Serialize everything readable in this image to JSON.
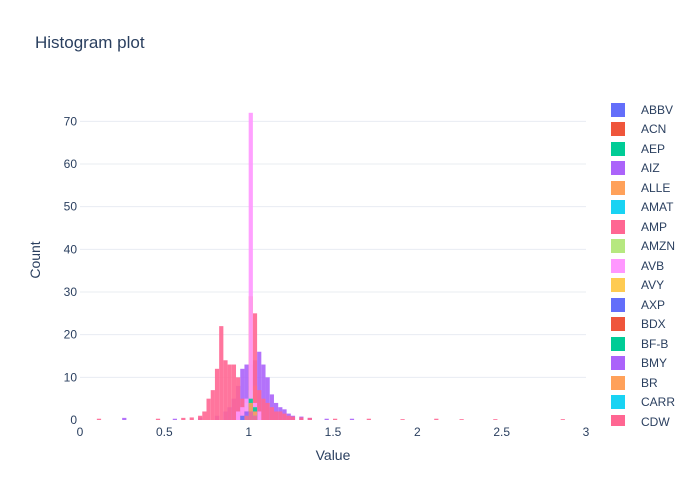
{
  "chart_data": {
    "type": "bar",
    "title": "Histogram plot",
    "xlabel": "Value",
    "ylabel": "Count",
    "xlim": [
      0,
      3
    ],
    "ylim": [
      0,
      75
    ],
    "x_ticks": [
      "0",
      "0.5",
      "1",
      "1.5",
      "2",
      "2.5",
      "3"
    ],
    "y_ticks": [
      "0",
      "10",
      "20",
      "30",
      "40",
      "50",
      "60",
      "70"
    ],
    "grid": true,
    "legend_position": "right",
    "barmode": "overlay",
    "bin_width": 0.025,
    "series": [
      {
        "name": "ABBV",
        "color": "#636efa",
        "bins": [
          [
            0.95,
            1
          ],
          [
            0.975,
            2
          ],
          [
            1.0,
            6
          ],
          [
            1.025,
            4
          ],
          [
            1.05,
            2
          ]
        ]
      },
      {
        "name": "ACN",
        "color": "#EF553B",
        "bins": [
          [
            0.975,
            4
          ],
          [
            1.0,
            8
          ],
          [
            1.025,
            5
          ],
          [
            1.05,
            2
          ]
        ]
      },
      {
        "name": "AEP",
        "color": "#00cc96",
        "bins": [
          [
            0.975,
            3
          ],
          [
            1.0,
            10
          ],
          [
            1.025,
            6
          ],
          [
            1.05,
            2
          ]
        ]
      },
      {
        "name": "AIZ",
        "color": "#ab63fa",
        "bins": [
          [
            0.25,
            0.5
          ],
          [
            0.55,
            0.3
          ],
          [
            0.7,
            0.6
          ],
          [
            0.8,
            1
          ],
          [
            0.85,
            2
          ],
          [
            0.875,
            3
          ],
          [
            0.9,
            5
          ],
          [
            0.925,
            8
          ],
          [
            0.95,
            12
          ],
          [
            0.975,
            13
          ],
          [
            1.0,
            13
          ],
          [
            1.025,
            14
          ],
          [
            1.05,
            16
          ],
          [
            1.075,
            13
          ],
          [
            1.1,
            10
          ],
          [
            1.125,
            6
          ],
          [
            1.15,
            4
          ],
          [
            1.175,
            3
          ],
          [
            1.2,
            2.5
          ],
          [
            1.225,
            1.5
          ],
          [
            1.25,
            1
          ],
          [
            1.3,
            0.8
          ],
          [
            1.35,
            0.5
          ],
          [
            1.45,
            0.3
          ],
          [
            1.6,
            0.3
          ]
        ]
      },
      {
        "name": "ALLE",
        "color": "#FFA15A",
        "bins": [
          [
            1.0,
            29
          ],
          [
            1.025,
            8
          ]
        ]
      },
      {
        "name": "AMAT",
        "color": "#19d3f3",
        "bins": [
          [
            0.95,
            2
          ],
          [
            0.975,
            3
          ],
          [
            1.0,
            5
          ],
          [
            1.025,
            3
          ],
          [
            1.05,
            1
          ]
        ]
      },
      {
        "name": "AMP",
        "color": "#FF6692",
        "bins": [
          [
            0.1,
            0.3
          ],
          [
            0.45,
            0.3
          ],
          [
            0.6,
            0.5
          ],
          [
            0.65,
            0.6
          ],
          [
            0.7,
            1
          ],
          [
            0.725,
            2
          ],
          [
            0.75,
            5
          ],
          [
            0.775,
            7
          ],
          [
            0.8,
            12
          ],
          [
            0.825,
            22
          ],
          [
            0.85,
            14
          ],
          [
            0.875,
            13
          ],
          [
            0.9,
            13
          ],
          [
            0.925,
            10
          ],
          [
            0.95,
            5
          ],
          [
            0.975,
            3
          ],
          [
            1.025,
            25
          ],
          [
            1.05,
            7
          ],
          [
            1.075,
            5
          ],
          [
            1.1,
            4
          ],
          [
            1.125,
            3
          ],
          [
            1.15,
            2
          ],
          [
            1.175,
            2
          ],
          [
            1.2,
            1.5
          ],
          [
            1.225,
            1
          ],
          [
            1.25,
            0.8
          ],
          [
            1.3,
            0.6
          ],
          [
            1.35,
            0.5
          ],
          [
            1.5,
            0.3
          ],
          [
            1.7,
            0.3
          ],
          [
            1.9,
            0.2
          ],
          [
            2.1,
            0.3
          ],
          [
            2.25,
            0.2
          ],
          [
            2.45,
            0.2
          ],
          [
            2.85,
            0.2
          ]
        ]
      },
      {
        "name": "AMZN",
        "color": "#B6E880",
        "bins": [
          [
            0.975,
            4
          ],
          [
            1.0,
            7
          ],
          [
            1.025,
            3
          ]
        ]
      },
      {
        "name": "AVB",
        "color": "#FF97FF",
        "bins": [
          [
            0.925,
            2
          ],
          [
            0.95,
            3
          ],
          [
            0.975,
            5
          ],
          [
            1.0,
            72
          ],
          [
            1.025,
            4
          ],
          [
            1.05,
            2
          ]
        ]
      },
      {
        "name": "AVY",
        "color": "#FECB52",
        "bins": [
          [
            0.975,
            2
          ],
          [
            1.0,
            4
          ],
          [
            1.025,
            2
          ]
        ]
      },
      {
        "name": "AXP",
        "color": "#636efa",
        "bins": [
          [
            0.95,
            1
          ],
          [
            0.975,
            2
          ],
          [
            1.0,
            3
          ],
          [
            1.025,
            2
          ]
        ]
      },
      {
        "name": "BDX",
        "color": "#EF553B",
        "bins": [
          [
            1.0,
            3
          ],
          [
            1.025,
            2
          ]
        ]
      },
      {
        "name": "BF-B",
        "color": "#00cc96",
        "bins": [
          [
            1.0,
            5
          ],
          [
            1.025,
            3
          ]
        ]
      },
      {
        "name": "BMY",
        "color": "#ab63fa",
        "bins": [
          [
            0.975,
            2
          ],
          [
            1.0,
            3
          ],
          [
            1.025,
            2
          ]
        ]
      },
      {
        "name": "BR",
        "color": "#FFA15A",
        "bins": [
          [
            1.0,
            4
          ],
          [
            1.025,
            2
          ]
        ]
      },
      {
        "name": "CARR",
        "color": "#19d3f3",
        "bins": [
          [
            0.975,
            1
          ],
          [
            1.0,
            2
          ],
          [
            1.025,
            1
          ]
        ]
      },
      {
        "name": "CDW",
        "color": "#FF6692",
        "bins": [
          [
            0.975,
            1
          ],
          [
            1.0,
            2
          ],
          [
            1.025,
            1
          ]
        ]
      }
    ]
  }
}
